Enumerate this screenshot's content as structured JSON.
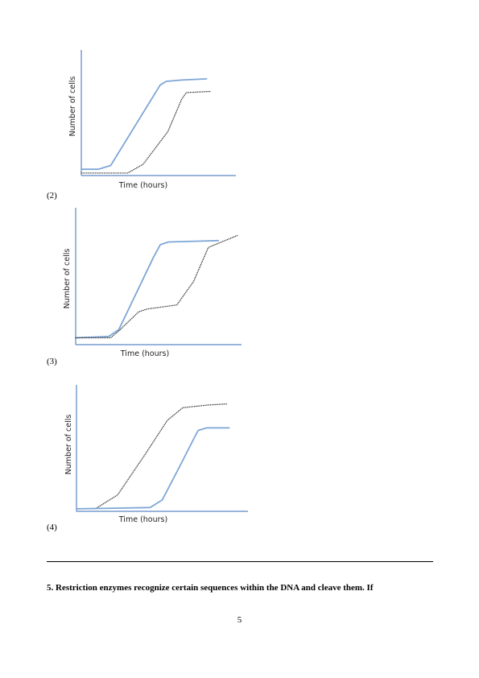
{
  "chart_data": [
    {
      "type": "line",
      "xlabel": "Time (hours)",
      "ylabel": "Number of cells",
      "xlim": [
        0,
        10
      ],
      "ylim": [
        0,
        10
      ],
      "series": [
        {
          "style": "solid",
          "color": "#7ea6d8",
          "points": [
            [
              0,
              0.5
            ],
            [
              1.1,
              0.5
            ],
            [
              1.9,
              0.8
            ],
            [
              5.1,
              7.2
            ],
            [
              5.5,
              7.5
            ],
            [
              6.5,
              7.6
            ],
            [
              8.1,
              7.7
            ]
          ]
        },
        {
          "style": "dotted",
          "color": "#333333",
          "points": [
            [
              0,
              0.2
            ],
            [
              3.0,
              0.2
            ],
            [
              4.0,
              0.9
            ],
            [
              5.6,
              3.5
            ],
            [
              6.5,
              6.1
            ],
            [
              6.8,
              6.6
            ],
            [
              8.4,
              6.7
            ]
          ]
        }
      ]
    },
    {
      "type": "line",
      "xlabel": "Time (hours)",
      "ylabel": "Number of cells",
      "xlim": [
        0,
        10
      ],
      "ylim": [
        0,
        10
      ],
      "series": [
        {
          "style": "solid",
          "color": "#7ea6d8",
          "points": [
            [
              0,
              0.5
            ],
            [
              2.0,
              0.6
            ],
            [
              2.6,
              1.1
            ],
            [
              4.7,
              6.4
            ],
            [
              5.1,
              7.3
            ],
            [
              5.6,
              7.5
            ],
            [
              8.6,
              7.6
            ]
          ]
        },
        {
          "style": "dotted",
          "color": "#333333",
          "points": [
            [
              0,
              0.5
            ],
            [
              2.1,
              0.5
            ],
            [
              2.6,
              1.0
            ],
            [
              3.8,
              2.4
            ],
            [
              4.3,
              2.6
            ],
            [
              6.1,
              2.9
            ],
            [
              7.1,
              4.6
            ],
            [
              8.0,
              7.1
            ],
            [
              9.8,
              8.0
            ]
          ]
        }
      ]
    },
    {
      "type": "line",
      "xlabel": "Time (hours)",
      "ylabel": "Number of cells",
      "xlim": [
        0,
        10
      ],
      "ylim": [
        0,
        10
      ],
      "series": [
        {
          "style": "dotted",
          "color": "#333333",
          "points": [
            [
              0,
              0.2
            ],
            [
              1.1,
              0.2
            ],
            [
              2.4,
              1.3
            ],
            [
              4.0,
              4.5
            ],
            [
              5.3,
              7.2
            ],
            [
              6.2,
              8.2
            ],
            [
              7.6,
              8.4
            ],
            [
              8.8,
              8.5
            ]
          ]
        },
        {
          "style": "solid",
          "color": "#7ea6d8",
          "points": [
            [
              0,
              0.2
            ],
            [
              4.3,
              0.3
            ],
            [
              5.0,
              0.9
            ],
            [
              6.0,
              3.5
            ],
            [
              6.9,
              5.9
            ],
            [
              7.1,
              6.4
            ],
            [
              7.6,
              6.6
            ],
            [
              8.9,
              6.6
            ]
          ]
        }
      ]
    }
  ],
  "options": [
    "(2)",
    "(3)",
    "(4)"
  ],
  "question_text": "5. Restriction enzymes recognize certain sequences within the DNA and cleave them. If",
  "page_number": "5"
}
